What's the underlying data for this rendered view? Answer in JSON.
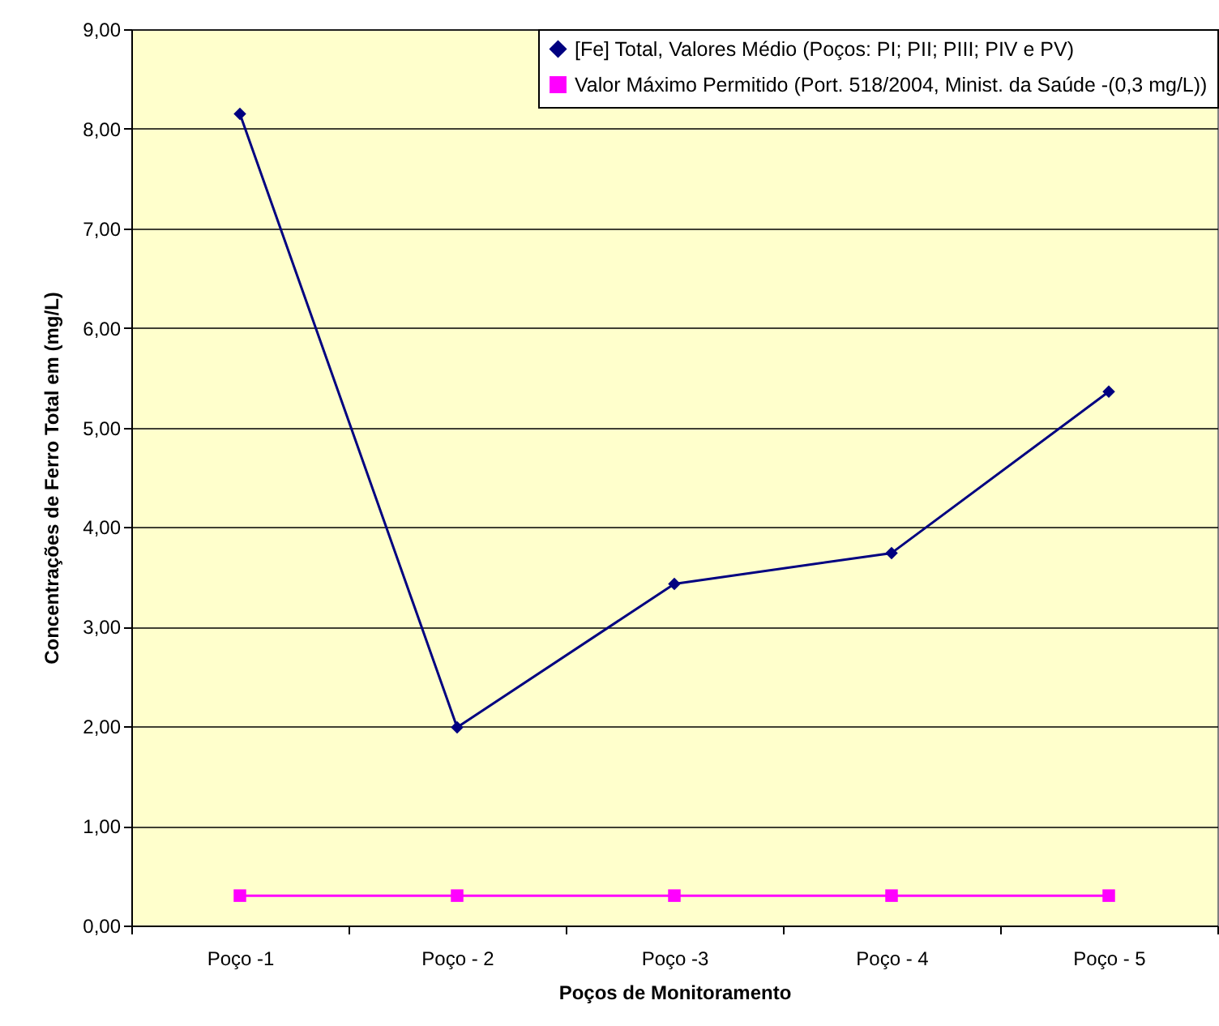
{
  "chart_data": {
    "type": "line",
    "xlabel": "Poços de Monitoramento",
    "ylabel": "Concentrações de Ferro Total em (mg/L)",
    "categories": [
      "Poço -1",
      "Poço - 2",
      "Poço -3",
      "Poço - 4",
      "Poço - 5"
    ],
    "series": [
      {
        "name": "[Fe] Total, Valores Médio (Poços: PI; PII; PIII; PIV e PV)",
        "color": "#000080",
        "marker": "diamond",
        "values": [
          8.15,
          1.99,
          3.43,
          3.74,
          5.36
        ]
      },
      {
        "name": "Valor Máximo Permitido (Port. 518/2004, Minist. da Saúde -(0,3 mg/L))",
        "color": "#ff00ff",
        "marker": "square",
        "values": [
          0.3,
          0.3,
          0.3,
          0.3,
          0.3
        ]
      }
    ],
    "ylim": [
      0,
      9
    ],
    "yticks": [
      {
        "value": 0,
        "label": "0,00"
      },
      {
        "value": 1,
        "label": "1,00"
      },
      {
        "value": 2,
        "label": "2,00"
      },
      {
        "value": 3,
        "label": "3,00"
      },
      {
        "value": 4,
        "label": "4,00"
      },
      {
        "value": 5,
        "label": "5,00"
      },
      {
        "value": 6,
        "label": "6,00"
      },
      {
        "value": 7,
        "label": "7,00"
      },
      {
        "value": 8,
        "label": "8,00"
      },
      {
        "value": 9,
        "label": "9,00"
      }
    ],
    "grid": "y",
    "legend": "top right"
  }
}
